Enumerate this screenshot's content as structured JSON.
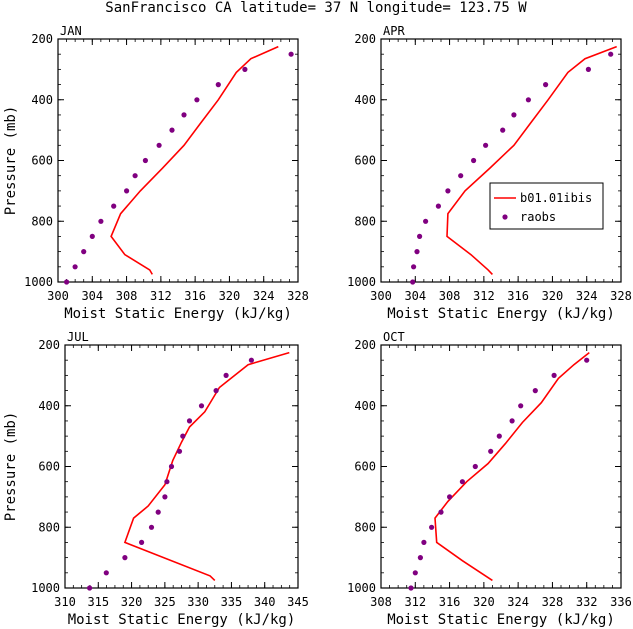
{
  "figure": {
    "title": "SanFrancisco CA  latitude= 37 N longitude= 123.75 W"
  },
  "legend": {
    "model_label": "b01.01ibis",
    "obs_label": "raobs"
  },
  "colors": {
    "model": "#ff0000",
    "obs": "#800080",
    "axes": "#000000"
  },
  "chart_data": [
    {
      "type": "line",
      "panel": "JAN",
      "title": "JAN",
      "xlabel": "Moist Static Energy (kJ/kg)",
      "ylabel": "Pressure (mb)",
      "xlim": [
        300,
        328
      ],
      "ylim": [
        1000,
        200
      ],
      "xticks": [
        300,
        304,
        308,
        312,
        316,
        320,
        324,
        328
      ],
      "yticks": [
        200,
        400,
        600,
        800,
        1000
      ],
      "series": [
        {
          "name": "b01.01ibis",
          "style": "line",
          "points": [
            [
              311.0,
              975
            ],
            [
              310.7,
              960
            ],
            [
              307.8,
              910
            ],
            [
              306.2,
              850
            ],
            [
              307.3,
              775
            ],
            [
              309.6,
              700
            ],
            [
              312.2,
              625
            ],
            [
              314.7,
              550
            ],
            [
              316.7,
              475
            ],
            [
              318.7,
              400
            ],
            [
              320.8,
              310
            ],
            [
              322.5,
              265
            ],
            [
              325.7,
              225
            ]
          ]
        },
        {
          "name": "raobs",
          "style": "points",
          "points": [
            [
              301.0,
              1000
            ],
            [
              302.0,
              950
            ],
            [
              303.0,
              900
            ],
            [
              304.0,
              850
            ],
            [
              305.0,
              800
            ],
            [
              306.5,
              750
            ],
            [
              308.0,
              700
            ],
            [
              309.0,
              650
            ],
            [
              310.2,
              600
            ],
            [
              311.8,
              550
            ],
            [
              313.3,
              500
            ],
            [
              314.7,
              450
            ],
            [
              316.2,
              400
            ],
            [
              318.7,
              350
            ],
            [
              321.8,
              300
            ],
            [
              327.2,
              250
            ]
          ]
        }
      ]
    },
    {
      "type": "line",
      "panel": "APR",
      "title": "APR",
      "xlabel": "Moist Static Energy (kJ/kg)",
      "ylabel": "",
      "xlim": [
        300,
        328
      ],
      "ylim": [
        1000,
        200
      ],
      "xticks": [
        300,
        304,
        308,
        312,
        316,
        320,
        324,
        328
      ],
      "yticks": [
        200,
        400,
        600,
        800,
        1000
      ],
      "series": [
        {
          "name": "b01.01ibis",
          "style": "line",
          "points": [
            [
              313.0,
              975
            ],
            [
              312.5,
              960
            ],
            [
              310.5,
              910
            ],
            [
              307.7,
              850
            ],
            [
              307.8,
              775
            ],
            [
              309.8,
              700
            ],
            [
              312.7,
              625
            ],
            [
              315.5,
              550
            ],
            [
              317.5,
              475
            ],
            [
              319.5,
              400
            ],
            [
              321.8,
              310
            ],
            [
              323.8,
              265
            ],
            [
              327.5,
              225
            ]
          ]
        },
        {
          "name": "raobs",
          "style": "points",
          "points": [
            [
              303.7,
              1000
            ],
            [
              303.8,
              950
            ],
            [
              304.2,
              900
            ],
            [
              304.5,
              850
            ],
            [
              305.2,
              800
            ],
            [
              306.7,
              750
            ],
            [
              307.8,
              700
            ],
            [
              309.3,
              650
            ],
            [
              310.8,
              600
            ],
            [
              312.2,
              550
            ],
            [
              314.2,
              500
            ],
            [
              315.5,
              450
            ],
            [
              317.2,
              400
            ],
            [
              319.2,
              350
            ],
            [
              324.2,
              300
            ],
            [
              326.8,
              250
            ]
          ]
        }
      ]
    },
    {
      "type": "line",
      "panel": "JUL",
      "title": "JUL",
      "xlabel": "Moist Static Energy (kJ/kg)",
      "ylabel": "Pressure (mb)",
      "xlim": [
        310,
        345
      ],
      "ylim": [
        1000,
        200
      ],
      "xticks": [
        310,
        315,
        320,
        325,
        330,
        335,
        340,
        345
      ],
      "yticks": [
        200,
        400,
        600,
        800,
        1000
      ],
      "series": [
        {
          "name": "b01.01ibis",
          "style": "line",
          "points": [
            [
              332.5,
              975
            ],
            [
              331.8,
              960
            ],
            [
              319.0,
              850
            ],
            [
              320.3,
              770
            ],
            [
              322.5,
              730
            ],
            [
              325.0,
              660
            ],
            [
              326.2,
              580
            ],
            [
              327.5,
              520
            ],
            [
              328.7,
              470
            ],
            [
              331.0,
              420
            ],
            [
              333.2,
              340
            ],
            [
              337.5,
              265
            ],
            [
              343.7,
              225
            ]
          ]
        },
        {
          "name": "raobs",
          "style": "points",
          "points": [
            [
              313.7,
              1000
            ],
            [
              316.2,
              950
            ],
            [
              319.0,
              900
            ],
            [
              321.5,
              850
            ],
            [
              323.0,
              800
            ],
            [
              324.0,
              750
            ],
            [
              325.0,
              700
            ],
            [
              325.3,
              650
            ],
            [
              326.0,
              600
            ],
            [
              327.2,
              550
            ],
            [
              327.7,
              500
            ],
            [
              328.7,
              450
            ],
            [
              330.5,
              400
            ],
            [
              332.7,
              350
            ],
            [
              334.2,
              300
            ],
            [
              338.0,
              250
            ]
          ]
        }
      ]
    },
    {
      "type": "line",
      "panel": "OCT",
      "title": "OCT",
      "xlabel": "Moist Static Energy (kJ/kg)",
      "ylabel": "",
      "xlim": [
        308,
        336
      ],
      "ylim": [
        1000,
        200
      ],
      "xticks": [
        308,
        312,
        316,
        320,
        324,
        328,
        332,
        336
      ],
      "yticks": [
        200,
        400,
        600,
        800,
        1000
      ],
      "series": [
        {
          "name": "b01.01ibis",
          "style": "line",
          "points": [
            [
              321.0,
              975
            ],
            [
              317.5,
              910
            ],
            [
              314.5,
              850
            ],
            [
              314.3,
              770
            ],
            [
              315.8,
              715
            ],
            [
              318.0,
              650
            ],
            [
              320.5,
              590
            ],
            [
              322.5,
              525
            ],
            [
              324.5,
              455
            ],
            [
              326.7,
              390
            ],
            [
              328.7,
              310
            ],
            [
              330.5,
              265
            ],
            [
              332.3,
              225
            ]
          ]
        },
        {
          "name": "raobs",
          "style": "points",
          "points": [
            [
              311.5,
              1000
            ],
            [
              312.0,
              950
            ],
            [
              312.6,
              900
            ],
            [
              313.0,
              850
            ],
            [
              313.9,
              800
            ],
            [
              315.0,
              750
            ],
            [
              316.0,
              700
            ],
            [
              317.5,
              650
            ],
            [
              319.0,
              600
            ],
            [
              320.8,
              550
            ],
            [
              321.8,
              500
            ],
            [
              323.3,
              450
            ],
            [
              324.3,
              400
            ],
            [
              326.0,
              350
            ],
            [
              328.2,
              300
            ],
            [
              332.0,
              250
            ]
          ]
        }
      ]
    }
  ]
}
